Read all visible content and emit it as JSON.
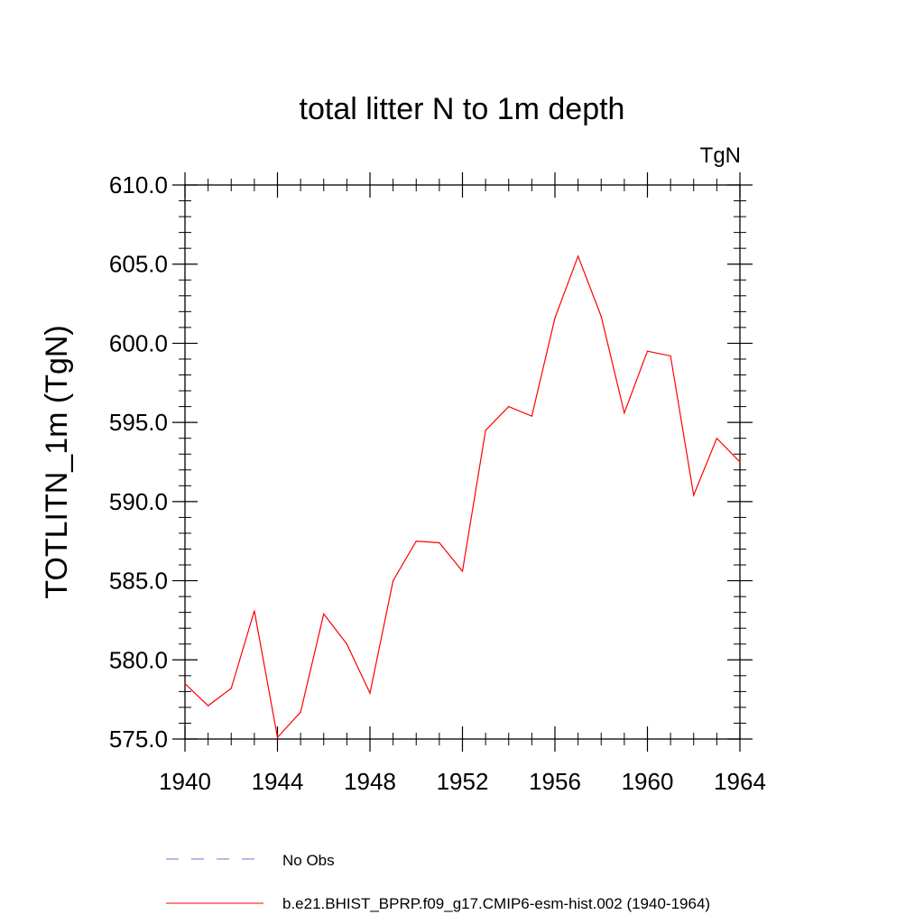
{
  "chart_data": {
    "type": "line",
    "title": "total litter N to 1m depth",
    "units_label": "TgN",
    "xlabel": "",
    "ylabel": "TOTLITN_1m  (TgN)",
    "xlim": [
      1940,
      1964
    ],
    "ylim": [
      575.0,
      610.0
    ],
    "x_ticks": [
      1940,
      1944,
      1948,
      1952,
      1956,
      1960,
      1964
    ],
    "x_tick_labels": [
      "1940",
      "1944",
      "1948",
      "1952",
      "1956",
      "1960",
      "1964"
    ],
    "y_ticks": [
      575,
      580,
      585,
      590,
      595,
      600,
      605,
      610
    ],
    "y_tick_labels": [
      "575.0",
      "580.0",
      "585.0",
      "590.0",
      "595.0",
      "600.0",
      "605.0",
      "610.0"
    ],
    "grid": false,
    "legend_position": "bottom",
    "series": [
      {
        "name": "b.e21.BHIST_BPRP.f09_g17.CMIP6-esm-hist.002 (1940-1964)",
        "color": "#ff0000",
        "line_style": "solid",
        "x": [
          1940,
          1941,
          1942,
          1943,
          1944,
          1945,
          1946,
          1947,
          1948,
          1949,
          1950,
          1951,
          1952,
          1953,
          1954,
          1955,
          1956,
          1957,
          1958,
          1959,
          1960,
          1961,
          1962,
          1963,
          1964
        ],
        "values": [
          578.5,
          577.1,
          578.2,
          583.1,
          575.1,
          576.7,
          582.9,
          581.0,
          577.9,
          585.0,
          587.5,
          587.4,
          585.6,
          594.5,
          596.0,
          595.4,
          601.6,
          605.5,
          601.7,
          595.6,
          599.5,
          599.2,
          590.4,
          594.0,
          592.5
        ]
      },
      {
        "name": "No Obs",
        "color": "#7a6fc8",
        "line_style": "dashed",
        "x": [],
        "values": []
      }
    ]
  }
}
